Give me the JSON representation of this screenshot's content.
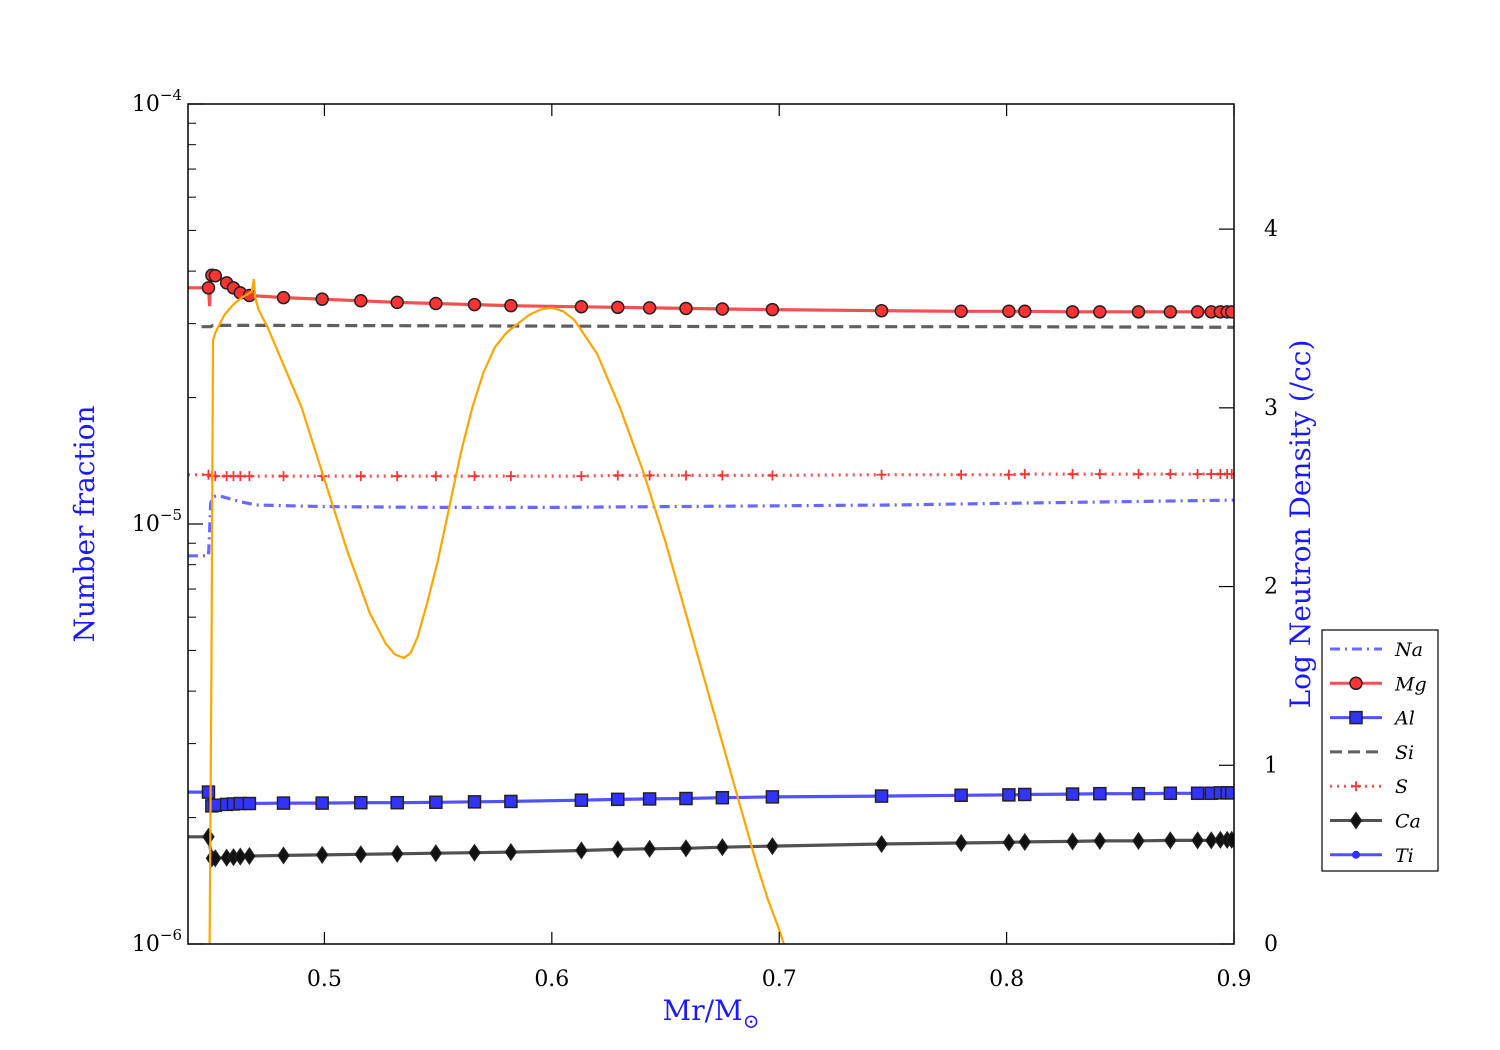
{
  "chart_data": {
    "type": "line",
    "xlabel": "Mr/M",
    "xlabel_sub": "⊙",
    "ylabel": "Number fraction",
    "y2label": "Log Neutron Density (/cc)",
    "xlim": [
      0.44,
      0.9
    ],
    "ylim": [
      1e-06,
      0.0001
    ],
    "yscale": "log",
    "y2lim": [
      0,
      4.7
    ],
    "x_ticks": [
      0.5,
      0.6,
      0.7,
      0.8,
      0.9
    ],
    "x_tick_labels": [
      "0.5",
      "0.6",
      "0.7",
      "0.8",
      "0.9"
    ],
    "y_ticks": [
      {
        "value": 1e-06,
        "base": "10",
        "exp": "−6"
      },
      {
        "value": 1e-05,
        "base": "10",
        "exp": "−5"
      },
      {
        "value": 0.0001,
        "base": "10",
        "exp": "−4"
      }
    ],
    "y2_ticks": [
      0,
      1,
      2,
      3,
      4
    ],
    "y2_tick_labels": [
      "0",
      "1",
      "2",
      "3",
      "4"
    ],
    "legend_position": "right",
    "grid": false,
    "marker_x": [
      0.449,
      0.4505,
      0.452,
      0.457,
      0.46,
      0.463,
      0.467,
      0.482,
      0.499,
      0.516,
      0.532,
      0.549,
      0.566,
      0.582,
      0.613,
      0.629,
      0.643,
      0.659,
      0.675,
      0.697,
      0.745,
      0.78,
      0.801,
      0.808,
      0.829,
      0.841,
      0.858,
      0.872,
      0.884,
      0.89,
      0.894,
      0.897,
      0.899
    ],
    "series": [
      {
        "name": "Na",
        "style": "dashdot",
        "color": "#4d4dff",
        "marker": "none",
        "x": [
          0.44,
          0.449,
          0.4495,
          0.45,
          0.451,
          0.453,
          0.458,
          0.463,
          0.47,
          0.5,
          0.55,
          0.6,
          0.65,
          0.7,
          0.75,
          0.8,
          0.85,
          0.9
        ],
        "y": [
          8.4e-06,
          8.4e-06,
          9.6e-06,
          1.12e-05,
          1.16e-05,
          1.17e-05,
          1.15e-05,
          1.13e-05,
          1.11e-05,
          1.1e-05,
          1.095e-05,
          1.095e-05,
          1.1e-05,
          1.105e-05,
          1.11e-05,
          1.12e-05,
          1.13e-05,
          1.14e-05
        ]
      },
      {
        "name": "Mg",
        "style": "solid",
        "color": "#ee3333",
        "marker": "circle",
        "marker_fill": "#ff3333",
        "x": [
          0.44,
          0.449,
          0.4495,
          0.45,
          0.451,
          0.453,
          0.457,
          0.46,
          0.463,
          0.467,
          0.482,
          0.499,
          0.516,
          0.532,
          0.549,
          0.566,
          0.582,
          0.613,
          0.629,
          0.643,
          0.659,
          0.675,
          0.697,
          0.745,
          0.78,
          0.801,
          0.808,
          0.829,
          0.841,
          0.858,
          0.872,
          0.884,
          0.89,
          0.894,
          0.897,
          0.899,
          0.9
        ],
        "y": [
          3.65e-05,
          3.65e-05,
          3.3e-05,
          3.9e-05,
          3.92e-05,
          3.88e-05,
          3.75e-05,
          3.65e-05,
          3.55e-05,
          3.5e-05,
          3.46e-05,
          3.43e-05,
          3.4e-05,
          3.37e-05,
          3.35e-05,
          3.33e-05,
          3.31e-05,
          3.29e-05,
          3.28e-05,
          3.27e-05,
          3.26e-05,
          3.25e-05,
          3.24e-05,
          3.22e-05,
          3.21e-05,
          3.21e-05,
          3.21e-05,
          3.2e-05,
          3.2e-05,
          3.2e-05,
          3.2e-05,
          3.2e-05,
          3.2e-05,
          3.2e-05,
          3.2e-05,
          3.2e-05,
          3.2e-05
        ]
      },
      {
        "name": "Al",
        "style": "solid",
        "color": "#3333ff",
        "marker": "square",
        "marker_fill": "#3333ff",
        "x": [
          0.44,
          0.449,
          0.4495,
          0.45,
          0.452,
          0.457,
          0.46,
          0.463,
          0.467,
          0.482,
          0.499,
          0.516,
          0.532,
          0.549,
          0.566,
          0.582,
          0.613,
          0.629,
          0.643,
          0.659,
          0.675,
          0.697,
          0.745,
          0.78,
          0.801,
          0.808,
          0.829,
          0.841,
          0.858,
          0.872,
          0.884,
          0.89,
          0.894,
          0.897,
          0.899,
          0.9
        ],
        "y": [
          2.3e-06,
          2.3e-06,
          2.15e-06,
          2.13e-06,
          2.14e-06,
          2.15e-06,
          2.155e-06,
          2.16e-06,
          2.16e-06,
          2.165e-06,
          2.165e-06,
          2.17e-06,
          2.17e-06,
          2.175e-06,
          2.18e-06,
          2.185e-06,
          2.2e-06,
          2.21e-06,
          2.215e-06,
          2.22e-06,
          2.23e-06,
          2.24e-06,
          2.25e-06,
          2.26e-06,
          2.265e-06,
          2.27e-06,
          2.275e-06,
          2.28e-06,
          2.28e-06,
          2.285e-06,
          2.285e-06,
          2.285e-06,
          2.29e-06,
          2.29e-06,
          2.29e-06,
          2.29e-06
        ]
      },
      {
        "name": "Si",
        "style": "dashed",
        "color": "#444444",
        "marker": "none",
        "x": [
          0.446,
          0.45,
          0.451,
          0.48,
          0.6,
          0.7,
          0.8,
          0.9
        ],
        "y": [
          2.95e-05,
          2.95e-05,
          2.97e-05,
          2.97e-05,
          2.96e-05,
          2.95e-05,
          2.95e-05,
          2.94e-05
        ]
      },
      {
        "name": "S",
        "style": "dotted",
        "color": "#ff3333",
        "marker": "plus",
        "x": [
          0.44,
          0.449,
          0.4505,
          0.452,
          0.457,
          0.46,
          0.463,
          0.467,
          0.482,
          0.499,
          0.516,
          0.532,
          0.549,
          0.566,
          0.582,
          0.613,
          0.629,
          0.643,
          0.659,
          0.675,
          0.697,
          0.745,
          0.78,
          0.801,
          0.808,
          0.829,
          0.841,
          0.858,
          0.872,
          0.884,
          0.89,
          0.894,
          0.897,
          0.899,
          0.9
        ],
        "y": [
          1.31e-05,
          1.31e-05,
          1.3e-05,
          1.3e-05,
          1.3e-05,
          1.3e-05,
          1.3e-05,
          1.3e-05,
          1.3e-05,
          1.3e-05,
          1.3e-05,
          1.3e-05,
          1.3e-05,
          1.3e-05,
          1.3e-05,
          1.3e-05,
          1.305e-05,
          1.305e-05,
          1.305e-05,
          1.305e-05,
          1.305e-05,
          1.31e-05,
          1.31e-05,
          1.31e-05,
          1.315e-05,
          1.315e-05,
          1.315e-05,
          1.315e-05,
          1.315e-05,
          1.315e-05,
          1.315e-05,
          1.315e-05,
          1.315e-05,
          1.315e-05,
          1.315e-05
        ]
      },
      {
        "name": "Ca",
        "style": "solid",
        "color": "#333333",
        "marker": "diamond",
        "marker_fill": "#111111",
        "x": [
          0.44,
          0.449,
          0.4505,
          0.452,
          0.457,
          0.46,
          0.463,
          0.467,
          0.482,
          0.499,
          0.516,
          0.532,
          0.549,
          0.566,
          0.582,
          0.613,
          0.629,
          0.643,
          0.659,
          0.675,
          0.697,
          0.745,
          0.78,
          0.801,
          0.808,
          0.829,
          0.841,
          0.858,
          0.872,
          0.884,
          0.89,
          0.894,
          0.897,
          0.899,
          0.9
        ],
        "y": [
          1.8e-06,
          1.8e-06,
          1.6e-06,
          1.6e-06,
          1.605e-06,
          1.61e-06,
          1.615e-06,
          1.62e-06,
          1.625e-06,
          1.63e-06,
          1.635e-06,
          1.64e-06,
          1.645e-06,
          1.65e-06,
          1.655e-06,
          1.67e-06,
          1.68e-06,
          1.685e-06,
          1.69e-06,
          1.7e-06,
          1.71e-06,
          1.73e-06,
          1.74e-06,
          1.745e-06,
          1.75e-06,
          1.755e-06,
          1.76e-06,
          1.76e-06,
          1.765e-06,
          1.765e-06,
          1.765e-06,
          1.77e-06,
          1.77e-06,
          1.77e-06,
          1.77e-06
        ]
      },
      {
        "name": "Ti",
        "style": "solid",
        "color": "#3333ff",
        "marker": "point",
        "legend_only": true,
        "x": [],
        "y": []
      }
    ],
    "neutron_density": {
      "axis": "right",
      "color": "#ffa500",
      "x": [
        0.4495,
        0.4503,
        0.451,
        0.452,
        0.456,
        0.46,
        0.464,
        0.468,
        0.469,
        0.4695,
        0.471,
        0.475,
        0.48,
        0.49,
        0.5,
        0.51,
        0.52,
        0.527,
        0.531,
        0.535,
        0.538,
        0.541,
        0.545,
        0.55,
        0.555,
        0.56,
        0.565,
        0.57,
        0.575,
        0.58,
        0.585,
        0.59,
        0.595,
        0.6,
        0.605,
        0.61,
        0.62,
        0.63,
        0.64,
        0.65,
        0.66,
        0.67,
        0.68,
        0.69,
        0.695,
        0.7,
        0.702
      ],
      "y": [
        0,
        1.5,
        3.38,
        3.42,
        3.52,
        3.58,
        3.62,
        3.65,
        3.72,
        3.62,
        3.55,
        3.45,
        3.3,
        3.0,
        2.6,
        2.2,
        1.85,
        1.68,
        1.62,
        1.6,
        1.63,
        1.72,
        1.9,
        2.15,
        2.45,
        2.75,
        3.0,
        3.2,
        3.34,
        3.42,
        3.47,
        3.52,
        3.55,
        3.56,
        3.54,
        3.49,
        3.3,
        3.0,
        2.65,
        2.25,
        1.8,
        1.35,
        0.9,
        0.45,
        0.25,
        0.08,
        0
      ]
    }
  }
}
